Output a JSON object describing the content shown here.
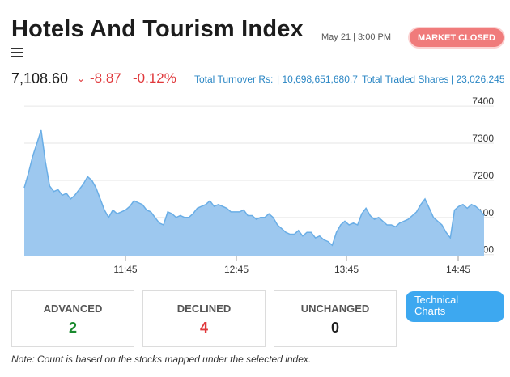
{
  "header": {
    "title": "Hotels And Tourism Index",
    "timestamp": "May 21 | 3:00 PM",
    "market_status": "MARKET CLOSED"
  },
  "quote": {
    "value": "7,108.60",
    "change": "-8.87",
    "change_pct": "-0.12%",
    "turnover_label": "Total Turnover Rs:",
    "turnover_value": "| 10,698,651,680.7",
    "traded_label": "Total Traded Shares",
    "traded_value": "| 23,026,245"
  },
  "colors": {
    "accent": "#3da8f0",
    "down": "#e0383b",
    "up": "#1a8a2f",
    "area_fill": "#9dc8ef",
    "area_line": "#6aaee6",
    "badge": "#f07b7b"
  },
  "chart_data": {
    "type": "area",
    "x_ticks": [
      "11:45",
      "12:45",
      "13:45",
      "14:45"
    ],
    "y_ticks": [
      "7000",
      "7100",
      "7200",
      "7300",
      "7400"
    ],
    "ylim": [
      6995,
      7420
    ],
    "grid": "horizontal",
    "series": [
      {
        "values": [
          7180,
          7220,
          7265,
          7300,
          7335,
          7250,
          7185,
          7170,
          7175,
          7160,
          7165,
          7150,
          7160,
          7175,
          7190,
          7210,
          7200,
          7180,
          7150,
          7120,
          7100,
          7120,
          7110,
          7115,
          7120,
          7130,
          7145,
          7140,
          7135,
          7120,
          7115,
          7100,
          7085,
          7080,
          7115,
          7110,
          7100,
          7105,
          7100,
          7100,
          7110,
          7125,
          7130,
          7135,
          7145,
          7130,
          7135,
          7130,
          7125,
          7115,
          7115,
          7115,
          7120,
          7105,
          7105,
          7095,
          7100,
          7100,
          7110,
          7100,
          7080,
          7070,
          7060,
          7055,
          7055,
          7065,
          7050,
          7060,
          7060,
          7045,
          7050,
          7040,
          7035,
          7025,
          7060,
          7080,
          7090,
          7080,
          7085,
          7080,
          7110,
          7125,
          7105,
          7095,
          7100,
          7090,
          7080,
          7080,
          7075,
          7085,
          7090,
          7095,
          7105,
          7115,
          7135,
          7150,
          7125,
          7100,
          7090,
          7080,
          7060,
          7045,
          7120,
          7130,
          7135,
          7125,
          7135,
          7130,
          7120,
          7105
        ]
      }
    ]
  },
  "cards": [
    {
      "label": "ADVANCED",
      "count": "2"
    },
    {
      "label": "DECLINED",
      "count": "4"
    },
    {
      "label": "UNCHANGED",
      "count": "0"
    }
  ],
  "tech_button": {
    "line1": "Technical",
    "line2": "Charts"
  },
  "note": "Note: Count is based on the stocks mapped under the selected index.",
  "icons": {
    "menu": "menu-icon",
    "down": "caret-down-icon"
  }
}
